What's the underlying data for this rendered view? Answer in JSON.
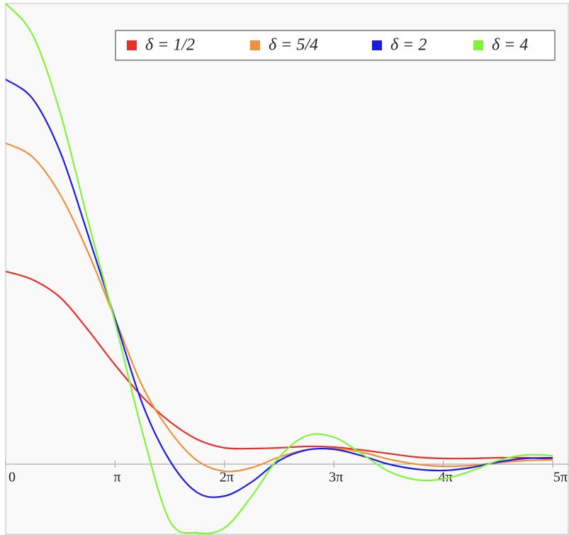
{
  "chart_data": {
    "type": "line",
    "x": [
      0,
      0.785,
      1.571,
      2.356,
      3.142,
      3.927,
      4.712,
      5.498,
      6.283,
      7.069,
      7.854,
      8.639,
      9.425,
      10.21,
      10.996,
      11.781,
      12.566,
      13.352,
      14.137,
      14.923,
      15.708
    ],
    "series": [
      {
        "name": "δ = 1/2",
        "color": "#e8302a",
        "values": [
          2.72,
          2.6,
          2.35,
          1.9,
          1.4,
          0.95,
          0.6,
          0.35,
          0.23,
          0.22,
          0.23,
          0.25,
          0.24,
          0.2,
          0.15,
          0.1,
          0.08,
          0.08,
          0.09,
          0.09,
          0.07
        ]
      },
      {
        "name": "δ = 5/4",
        "color": "#f0903a",
        "values": [
          4.53,
          4.33,
          3.8,
          3.0,
          2.05,
          1.1,
          0.47,
          0.05,
          -0.1,
          -0.05,
          0.1,
          0.2,
          0.22,
          0.17,
          0.07,
          0.0,
          -0.03,
          -0.02,
          0.02,
          0.05,
          0.06
        ]
      },
      {
        "name": "δ = 2",
        "color": "#1a1ae6",
        "values": [
          5.43,
          5.15,
          4.4,
          3.25,
          2.05,
          0.85,
          0.05,
          -0.4,
          -0.45,
          -0.25,
          0.05,
          0.2,
          0.21,
          0.12,
          0.0,
          -0.07,
          -0.09,
          -0.05,
          0.03,
          0.08,
          0.09
        ]
      },
      {
        "name": "δ = 4",
        "color": "#7ff53a",
        "values": [
          6.5,
          6.05,
          4.95,
          3.45,
          2.0,
          0.45,
          -0.8,
          -0.97,
          -0.9,
          -0.45,
          0.1,
          0.4,
          0.38,
          0.15,
          -0.1,
          -0.22,
          -0.21,
          -0.1,
          0.05,
          0.13,
          0.12
        ]
      }
    ],
    "xlim": [
      0,
      16.175
    ],
    "ylim": [
      -1.0,
      6.5
    ],
    "xticks": [
      0,
      {
        "value": 3.1416,
        "label": "π"
      },
      {
        "value": 6.2832,
        "label": "2π"
      },
      {
        "value": 9.4248,
        "label": "3π"
      },
      {
        "value": 12.5664,
        "label": "4π"
      },
      {
        "value": 15.708,
        "label": "5π"
      }
    ],
    "legend": "top-right"
  }
}
